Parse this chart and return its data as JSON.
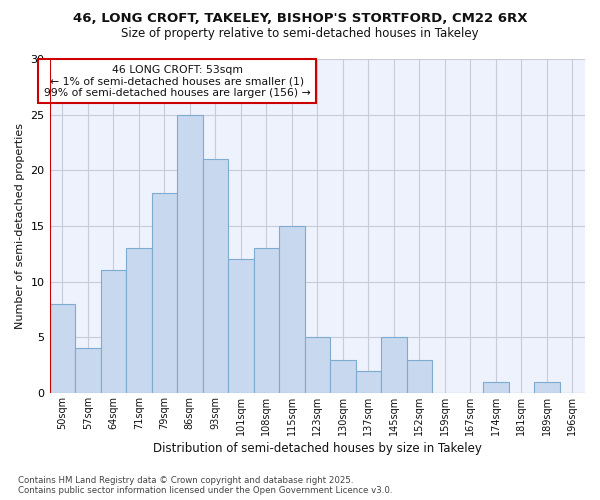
{
  "title_line1": "46, LONG CROFT, TAKELEY, BISHOP'S STORTFORD, CM22 6RX",
  "title_line2": "Size of property relative to semi-detached houses in Takeley",
  "xlabel": "Distribution of semi-detached houses by size in Takeley",
  "ylabel": "Number of semi-detached properties",
  "categories": [
    "50sqm",
    "57sqm",
    "64sqm",
    "71sqm",
    "79sqm",
    "86sqm",
    "93sqm",
    "101sqm",
    "108sqm",
    "115sqm",
    "123sqm",
    "130sqm",
    "137sqm",
    "145sqm",
    "152sqm",
    "159sqm",
    "167sqm",
    "174sqm",
    "181sqm",
    "189sqm",
    "196sqm"
  ],
  "values": [
    8,
    4,
    11,
    13,
    18,
    25,
    21,
    12,
    13,
    15,
    5,
    3,
    2,
    5,
    3,
    0,
    0,
    1,
    0,
    1,
    0
  ],
  "bar_color": "#c8d8ee",
  "bar_edge_color": "#7eacd0",
  "vline_color": "#cc0000",
  "annotation_title": "46 LONG CROFT: 53sqm",
  "annotation_line1": "← 1% of semi-detached houses are smaller (1)",
  "annotation_line2": "99% of semi-detached houses are larger (156) →",
  "annotation_box_color": "#ffffff",
  "annotation_box_edge": "#cc0000",
  "ylim": [
    0,
    30
  ],
  "yticks": [
    0,
    5,
    10,
    15,
    20,
    25,
    30
  ],
  "plot_bg_color": "#eef2fc",
  "fig_bg_color": "#ffffff",
  "grid_color": "#c8ccd8",
  "footer": "Contains HM Land Registry data © Crown copyright and database right 2025.\nContains public sector information licensed under the Open Government Licence v3.0."
}
